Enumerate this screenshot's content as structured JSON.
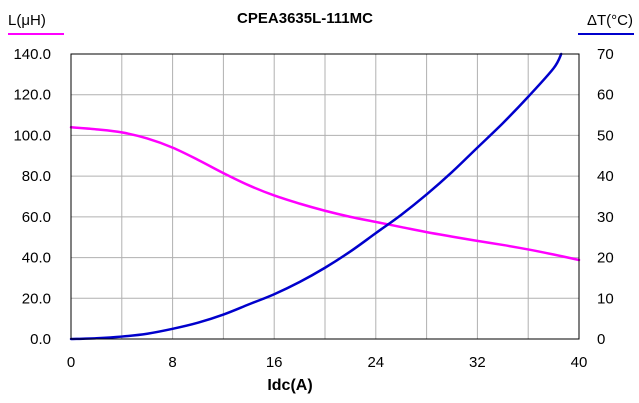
{
  "chart_data": {
    "type": "line",
    "title": "CPEA3635L-111MC",
    "xlabel": "Idc(A)",
    "ylabel_left": "L(μH)",
    "ylabel_right": "ΔT(°C)",
    "xlim": [
      0,
      40
    ],
    "ylim_left": [
      0,
      140
    ],
    "ylim_right": [
      0,
      70
    ],
    "x_ticks": [
      0,
      8,
      16,
      24,
      32,
      40
    ],
    "y_left_ticks": [
      "0.0",
      "20.0",
      "40.0",
      "60.0",
      "80.0",
      "100.0",
      "120.0",
      "140.0"
    ],
    "y_right_ticks": [
      "0",
      "10",
      "20",
      "30",
      "40",
      "50",
      "60",
      "70"
    ],
    "x_gridlines": [
      0,
      4,
      8,
      12,
      16,
      20,
      24,
      28,
      32,
      36,
      40
    ],
    "grid": true,
    "series": [
      {
        "name": "L(μH)",
        "axis": "left",
        "color": "#ff00ff",
        "x": [
          0,
          2,
          4,
          6,
          8,
          10,
          12,
          14,
          16,
          18,
          20,
          22,
          24,
          26,
          28,
          30,
          32,
          34,
          36,
          38,
          40
        ],
        "values": [
          104,
          103,
          101.5,
          98.5,
          94,
          88,
          81.5,
          75.5,
          70.5,
          66.5,
          63,
          60,
          57.5,
          55,
          52.5,
          50.3,
          48.2,
          46.2,
          44,
          41.5,
          38.8
        ]
      },
      {
        "name": "ΔT(°C)",
        "axis": "right",
        "color": "#0000cc",
        "x": [
          0,
          2,
          4,
          6,
          8,
          10,
          12,
          14,
          16,
          18,
          20,
          22,
          24,
          26,
          28,
          30,
          32,
          34,
          36,
          38,
          38.6
        ],
        "values": [
          0,
          0.2,
          0.6,
          1.3,
          2.5,
          4,
          6,
          8.5,
          11,
          14,
          17.5,
          21.5,
          26,
          30.5,
          35.5,
          41,
          47,
          53,
          59.5,
          66.5,
          70
        ]
      }
    ]
  }
}
